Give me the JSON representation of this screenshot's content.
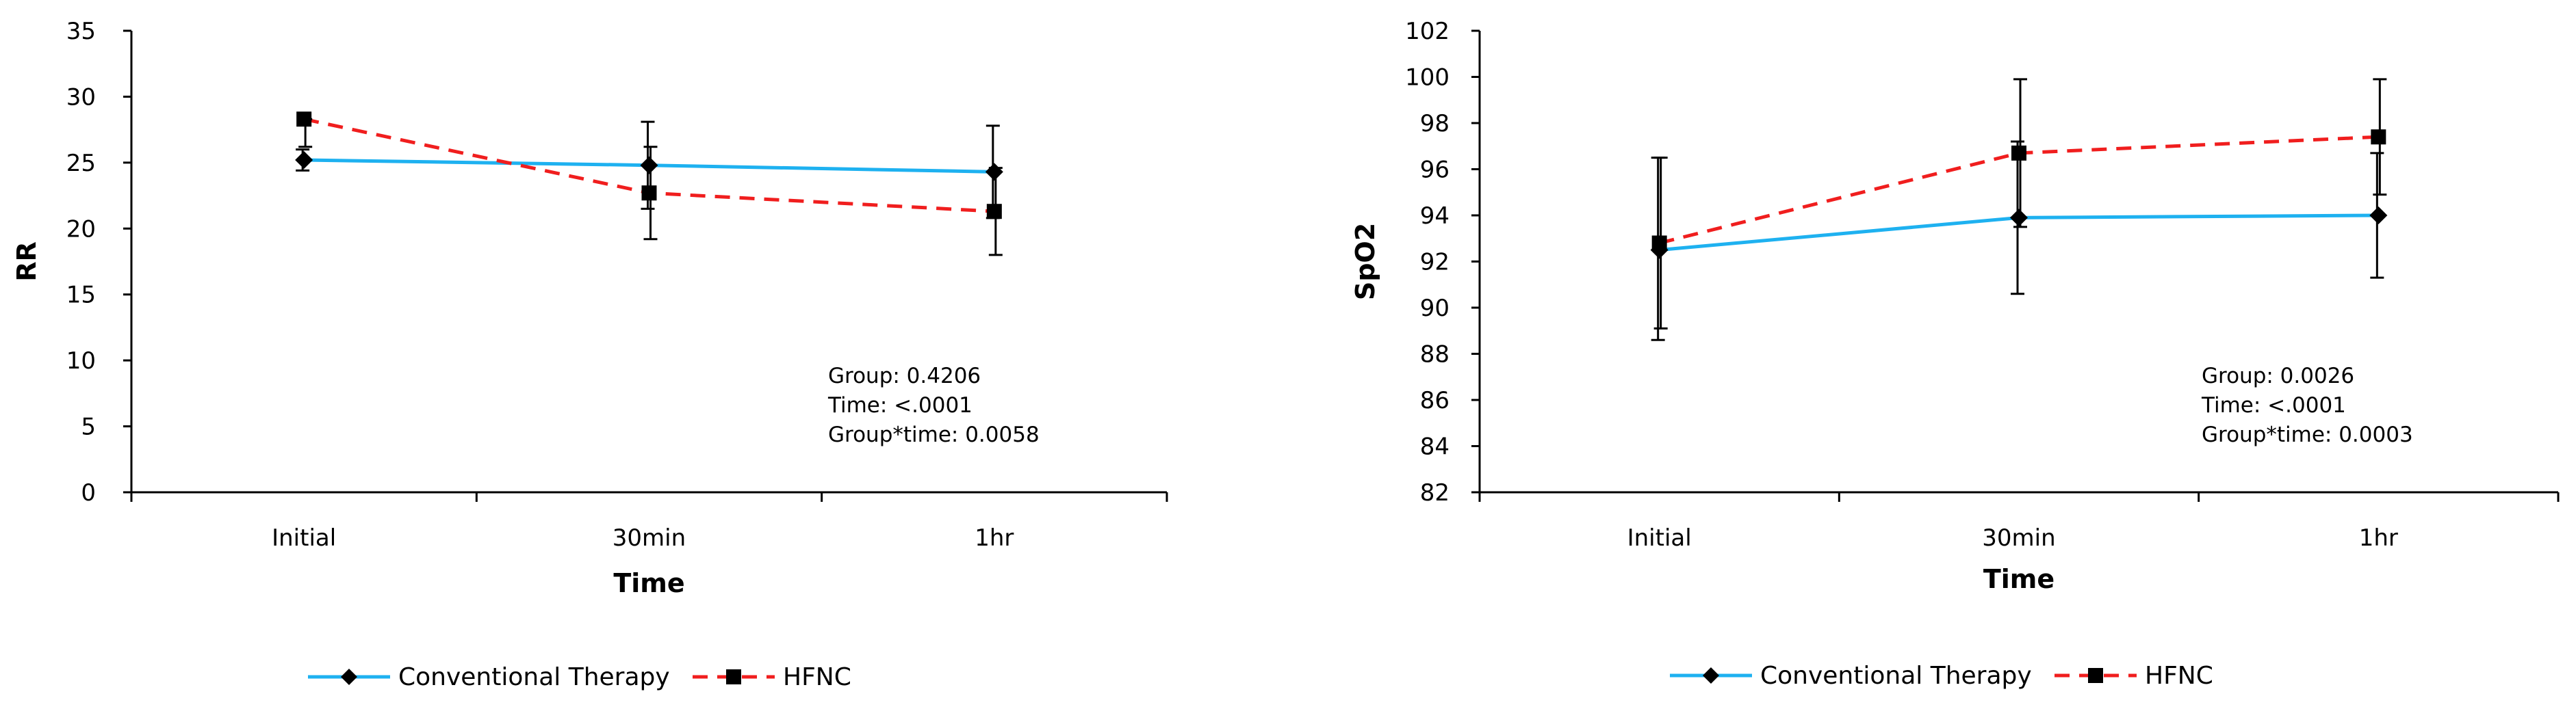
{
  "colors": {
    "conventional": "#1EB1F0",
    "hfnc": "#F01E1E",
    "axis": "#000000",
    "errorbar": "#000000"
  },
  "chart_data": [
    {
      "type": "line",
      "xlabel": "Time",
      "ylabel": "RR",
      "categories": [
        "Initial",
        "30min",
        "1hr"
      ],
      "ylim": [
        0,
        35
      ],
      "yticks": [
        "0",
        "5",
        "10",
        "15",
        "20",
        "25",
        "30",
        "35"
      ],
      "grid": false,
      "legend_position": "bottom",
      "series": [
        {
          "name": "Conventional Therapy",
          "marker": "diamond",
          "line": "solid",
          "values": [
            25.2,
            24.8,
            24.3
          ],
          "err_low": [
            24.4,
            21.5,
            20.8
          ],
          "err_high": [
            26.0,
            28.1,
            27.8
          ]
        },
        {
          "name": "HFNC",
          "marker": "square",
          "line": "dashed",
          "values": [
            28.3,
            22.7,
            21.3
          ],
          "err_low": [
            26.2,
            19.2,
            18.0
          ],
          "err_high": [
            28.3,
            26.2,
            24.6
          ]
        }
      ],
      "annotation": [
        "Group: 0.4206",
        "Time: <.0001",
        "Group*time: 0.0058"
      ]
    },
    {
      "type": "line",
      "xlabel": "Time",
      "ylabel": "SpO2",
      "categories": [
        "Initial",
        "30min",
        "1hr"
      ],
      "ylim": [
        82,
        102
      ],
      "yticks": [
        "82",
        "84",
        "86",
        "88",
        "90",
        "92",
        "94",
        "96",
        "98",
        "100",
        "102"
      ],
      "grid": false,
      "legend_position": "bottom",
      "series": [
        {
          "name": "Conventional Therapy",
          "marker": "diamond",
          "line": "solid",
          "values": [
            92.5,
            93.9,
            94.0
          ],
          "err_low": [
            88.6,
            90.6,
            91.3
          ],
          "err_high": [
            96.5,
            97.2,
            96.7
          ]
        },
        {
          "name": "HFNC",
          "marker": "square",
          "line": "dashed",
          "values": [
            92.8,
            96.7,
            97.4
          ],
          "err_low": [
            89.1,
            93.5,
            94.9
          ],
          "err_high": [
            96.5,
            99.9,
            99.9
          ]
        }
      ],
      "annotation": [
        "Group: 0.0026",
        "Time: <.0001",
        "Group*time: 0.0003"
      ]
    }
  ]
}
